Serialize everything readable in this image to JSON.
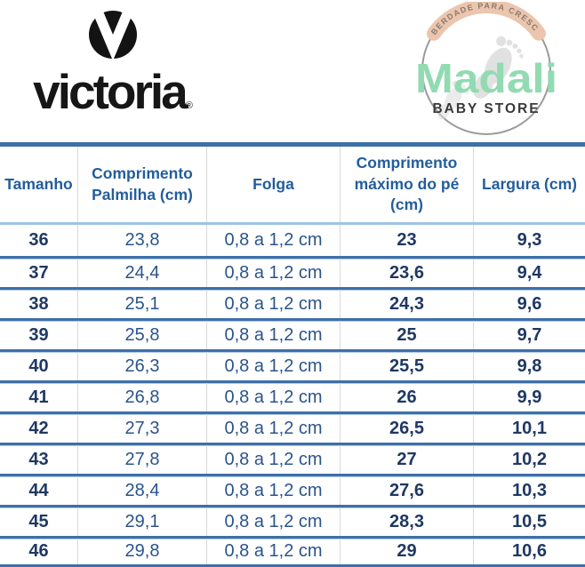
{
  "victoria": {
    "wordmark": "victoria",
    "registered": "®"
  },
  "madali": {
    "arc_text": "LIBERDADE PARA CRESCER",
    "name": "Madali",
    "subtitle": "BABY STORE"
  },
  "table": {
    "headers": [
      "Tamanho",
      "Comprimento Palmilha (cm)",
      "Folga",
      "Comprimento máximo do pé (cm)",
      "Largura (cm)"
    ],
    "bold_columns": [
      0,
      3,
      4
    ],
    "rows": [
      [
        "36",
        "23,8",
        "0,8 a 1,2 cm",
        "23",
        "9,3"
      ],
      [
        "37",
        "24,4",
        "0,8 a 1,2 cm",
        "23,6",
        "9,4"
      ],
      [
        "38",
        "25,1",
        "0,8 a 1,2 cm",
        "24,3",
        "9,6"
      ],
      [
        "39",
        "25,8",
        "0,8 a 1,2 cm",
        "25",
        "9,7"
      ],
      [
        "40",
        "26,3",
        "0,8 a 1,2 cm",
        "25,5",
        "9,8"
      ],
      [
        "41",
        "26,8",
        "0,8 a 1,2 cm",
        "26",
        "9,9"
      ],
      [
        "42",
        "27,3",
        "0,8 a 1,2 cm",
        "26,5",
        "10,1"
      ],
      [
        "43",
        "27,8",
        "0,8 a 1,2 cm",
        "27",
        "10,2"
      ],
      [
        "44",
        "28,4",
        "0,8 a 1,2 cm",
        "27,6",
        "10,3"
      ],
      [
        "45",
        "29,1",
        "0,8 a 1,2 cm",
        "28,3",
        "10,5"
      ],
      [
        "46",
        "29,8",
        "0,8 a 1,2 cm",
        "29",
        "10,6"
      ]
    ]
  },
  "chart_data": {
    "type": "table",
    "columns": [
      "Tamanho",
      "Comprimento Palmilha (cm)",
      "Folga",
      "Comprimento máximo do pé (cm)",
      "Largura (cm)"
    ],
    "rows": [
      [
        "36",
        "23,8",
        "0,8 a 1,2 cm",
        "23",
        "9,3"
      ],
      [
        "37",
        "24,4",
        "0,8 a 1,2 cm",
        "23,6",
        "9,4"
      ],
      [
        "38",
        "25,1",
        "0,8 a 1,2 cm",
        "24,3",
        "9,6"
      ],
      [
        "39",
        "25,8",
        "0,8 a 1,2 cm",
        "25",
        "9,7"
      ],
      [
        "40",
        "26,3",
        "0,8 a 1,2 cm",
        "25,5",
        "9,8"
      ],
      [
        "41",
        "26,8",
        "0,8 a 1,2 cm",
        "26",
        "9,9"
      ],
      [
        "42",
        "27,3",
        "0,8 a 1,2 cm",
        "26,5",
        "10,1"
      ],
      [
        "43",
        "27,8",
        "0,8 a 1,2 cm",
        "27",
        "10,2"
      ],
      [
        "44",
        "28,4",
        "0,8 a 1,2 cm",
        "27,6",
        "10,3"
      ],
      [
        "45",
        "29,1",
        "0,8 a 1,2 cm",
        "28,3",
        "10,5"
      ],
      [
        "46",
        "29,8",
        "0,8 a 1,2 cm",
        "29",
        "10,6"
      ]
    ]
  },
  "colors": {
    "table_line_blue": "#3E6FA9",
    "header_separator_light_blue": "#9DC3E6",
    "row_inner_light_blue": "#AFC9E5",
    "column_line_gray": "#D9D9D9",
    "header_text_blue": "#235D9B",
    "cell_text_blue": "#2A548C",
    "cell_text_bold_navy": "#1F3864",
    "victoria_black": "#161616",
    "madali_green": "#92DBB2",
    "madali_arc_peach": "#EBC5AD",
    "madali_arc_text": "#8B7B70",
    "madali_dark": "#3A3A3C",
    "madali_circle_gray": "#9B9B9B",
    "footprint_gray": "#DADADA"
  }
}
